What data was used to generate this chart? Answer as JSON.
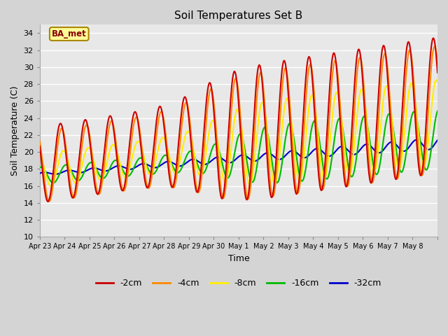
{
  "title": "Soil Temperatures Set B",
  "xlabel": "Time",
  "ylabel": "Soil Temperature (C)",
  "ylim": [
    10,
    35
  ],
  "yticks": [
    10,
    12,
    14,
    16,
    18,
    20,
    22,
    24,
    26,
    28,
    30,
    32,
    34
  ],
  "fig_facecolor": "#d4d4d4",
  "plot_facecolor": "#e8e8e8",
  "colors": {
    "-2cm": "#cc0000",
    "-4cm": "#ff8800",
    "-8cm": "#ffee00",
    "-16cm": "#00bb00",
    "-32cm": "#0000cc"
  },
  "annotation_text": "BA_met",
  "annotation_bg": "#ffff99",
  "annotation_border": "#aa8800",
  "annotation_text_color": "#880000",
  "x_tick_labels": [
    "Apr 23",
    "Apr 24",
    "Apr 25",
    "Apr 26",
    "Apr 27",
    "Apr 28",
    "Apr 29",
    "Apr 30",
    "May 1",
    "May 2",
    "May 3",
    "May 4",
    "May 5",
    "May 6",
    "May 7",
    "May 8"
  ],
  "num_days": 16,
  "points_per_day": 48
}
